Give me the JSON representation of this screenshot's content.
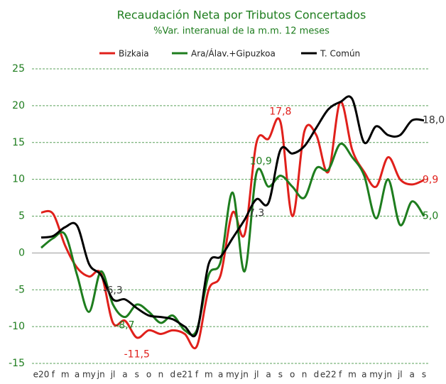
{
  "chart_data": {
    "type": "line",
    "title": "Recaudación Neta por Tributos Concertados",
    "subtitle": "%Var. interanual de la m.m. 12 meses",
    "categories": [
      "e20",
      "f",
      "m",
      "a",
      "my",
      "jn",
      "jl",
      "a",
      "s",
      "o",
      "n",
      "d",
      "e21",
      "f",
      "m",
      "a",
      "my",
      "jn",
      "jl",
      "a",
      "s",
      "o",
      "n",
      "d",
      "e22",
      "f",
      "m",
      "a",
      "my",
      "jn",
      "jl",
      "a",
      "s"
    ],
    "series": [
      {
        "name": "Bizkaia",
        "color": "#e0201b",
        "values": [
          5.5,
          5.3,
          1,
          -2,
          -3.2,
          -2.8,
          -9.5,
          -9.2,
          -11.5,
          -10.5,
          -11,
          -10.5,
          -11,
          -12.7,
          -5,
          -3,
          5.5,
          2.5,
          15,
          15.5,
          17.8,
          5,
          16.5,
          16,
          11,
          20.5,
          14,
          11,
          9,
          13,
          10,
          9.3,
          9.9
        ],
        "value_labels": [
          null,
          null,
          null,
          null,
          null,
          null,
          null,
          null,
          "-11,5",
          null,
          null,
          null,
          null,
          null,
          null,
          null,
          null,
          null,
          null,
          null,
          "17,8",
          null,
          null,
          null,
          null,
          null,
          null,
          null,
          null,
          null,
          null,
          null,
          "9,9"
        ]
      },
      {
        "name": "Ara/Álav.+Gipuzkoa",
        "color": "#1e7d1e",
        "values": [
          0.7,
          2,
          2.5,
          -3,
          -8,
          -2.5,
          -7,
          -8.7,
          -7,
          -8,
          -9.5,
          -8.5,
          -10.5,
          -10.5,
          -3,
          -1.2,
          8.2,
          -2.5,
          10.9,
          9,
          10.5,
          9,
          7.5,
          11.5,
          11.3,
          14.8,
          13,
          10.5,
          4.7,
          10,
          3.8,
          7,
          5.0
        ],
        "value_labels": [
          null,
          null,
          null,
          null,
          null,
          null,
          null,
          "-8,7",
          null,
          null,
          null,
          null,
          null,
          null,
          null,
          null,
          null,
          null,
          "10,9",
          null,
          null,
          null,
          null,
          null,
          null,
          null,
          null,
          null,
          null,
          null,
          null,
          null,
          "5,0"
        ]
      },
      {
        "name": "T. Común",
        "color": "#000000",
        "values": [
          2.1,
          2.3,
          3.5,
          3.7,
          -1.5,
          -3,
          -6.3,
          -6.3,
          -7.5,
          -8.5,
          -8.7,
          -9,
          -10,
          -10.8,
          -1.5,
          -0.5,
          2,
          4.5,
          7.3,
          6.8,
          14,
          13.5,
          14.5,
          17,
          19.5,
          20.5,
          20.9,
          15,
          17.2,
          16,
          16,
          18,
          18.0
        ],
        "value_labels": [
          null,
          null,
          null,
          null,
          null,
          null,
          "-6,3",
          null,
          null,
          null,
          null,
          null,
          null,
          null,
          null,
          null,
          null,
          null,
          "7,3",
          null,
          null,
          null,
          null,
          null,
          null,
          null,
          null,
          null,
          null,
          null,
          null,
          null,
          "18,0"
        ]
      }
    ],
    "ylim": [
      -15,
      25
    ],
    "yticks": [
      -15,
      -10,
      -5,
      0,
      5,
      10,
      15,
      20,
      25
    ],
    "grid": true
  }
}
